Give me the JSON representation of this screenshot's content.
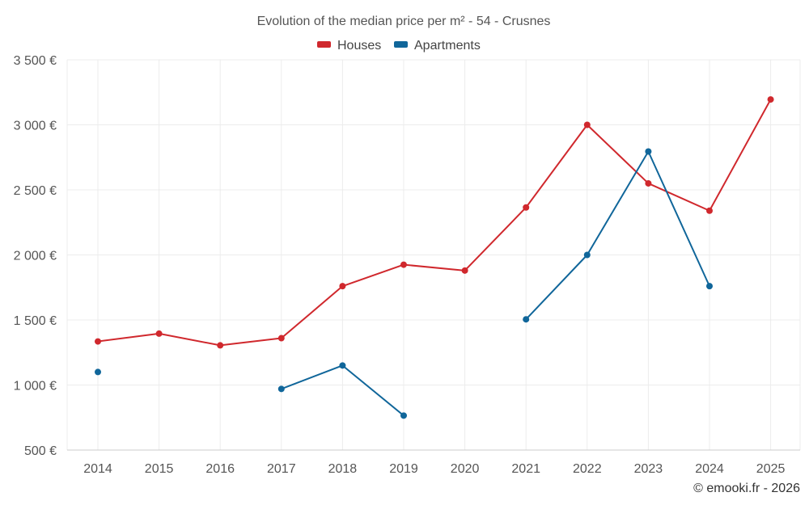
{
  "chart_data": {
    "type": "line",
    "title": "Evolution of the median price per m² - 54 - Crusnes",
    "categories": [
      "2014",
      "2015",
      "2016",
      "2017",
      "2018",
      "2019",
      "2020",
      "2021",
      "2022",
      "2023",
      "2024",
      "2025"
    ],
    "y_ticks": [
      "500 €",
      "1 000 €",
      "1 500 €",
      "2 000 €",
      "2 500 €",
      "3 000 €",
      "3 500 €"
    ],
    "ylim": [
      500,
      3500
    ],
    "grid": true,
    "legend_position": "top-center",
    "series": [
      {
        "name": "Houses",
        "color": "#d0282d",
        "values": [
          1335,
          1395,
          1305,
          1360,
          1760,
          1925,
          1880,
          2365,
          3000,
          2550,
          2340,
          3195
        ]
      },
      {
        "name": "Apartments",
        "color": "#10669a",
        "values": [
          1100,
          null,
          null,
          970,
          1150,
          765,
          null,
          1505,
          2000,
          2795,
          1760,
          null
        ]
      }
    ]
  },
  "credit": "© emooki.fr - 2026"
}
